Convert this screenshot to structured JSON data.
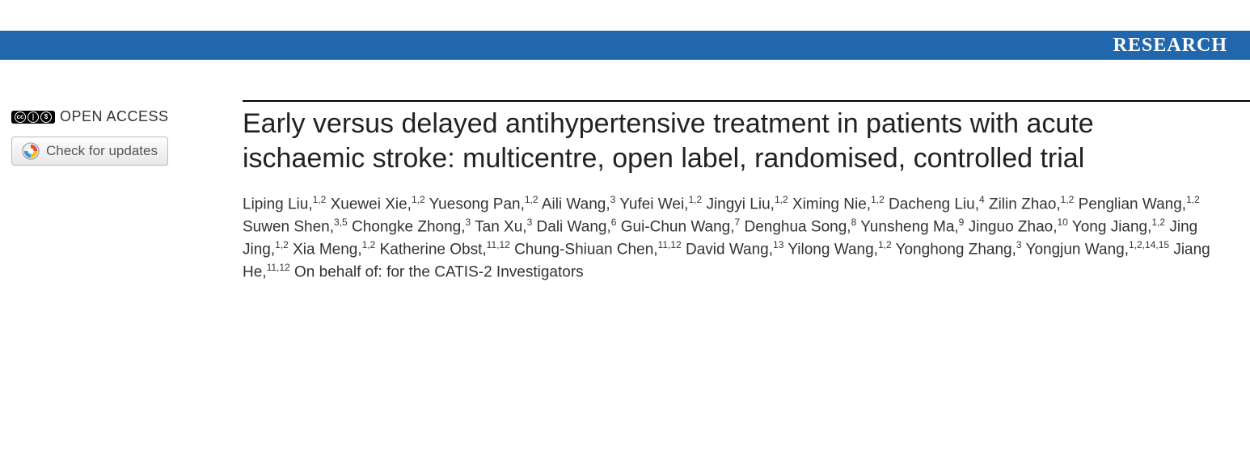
{
  "banner": {
    "label": "RESEARCH",
    "background_color": "#2167ae",
    "text_color": "#ffffff"
  },
  "sidebar": {
    "open_access_label": "OPEN ACCESS",
    "check_updates_label": "Check for updates"
  },
  "article": {
    "title": "Early versus delayed antihypertensive treatment in patients with acute ischaemic stroke: multicentre, open label, randomised, controlled trial",
    "authors": [
      {
        "name": "Liping Liu",
        "affil": "1,2"
      },
      {
        "name": "Xuewei Xie",
        "affil": "1,2"
      },
      {
        "name": "Yuesong Pan",
        "affil": "1,2"
      },
      {
        "name": "Aili Wang",
        "affil": "3"
      },
      {
        "name": "Yufei Wei",
        "affil": "1,2"
      },
      {
        "name": "Jingyi Liu",
        "affil": "1,2"
      },
      {
        "name": "Ximing Nie",
        "affil": "1,2"
      },
      {
        "name": "Dacheng Liu",
        "affil": "4"
      },
      {
        "name": "Zilin Zhao",
        "affil": "1,2"
      },
      {
        "name": "Penglian Wang",
        "affil": "1,2"
      },
      {
        "name": "Suwen Shen",
        "affil": "3,5"
      },
      {
        "name": "Chongke Zhong",
        "affil": "3"
      },
      {
        "name": "Tan Xu",
        "affil": "3"
      },
      {
        "name": "Dali Wang",
        "affil": "6"
      },
      {
        "name": "Gui-Chun Wang",
        "affil": "7"
      },
      {
        "name": "Denghua Song",
        "affil": "8"
      },
      {
        "name": "Yunsheng Ma",
        "affil": "9"
      },
      {
        "name": "Jinguo Zhao",
        "affil": "10"
      },
      {
        "name": "Yong Jiang",
        "affil": "1,2"
      },
      {
        "name": "Jing Jing",
        "affil": "1,2"
      },
      {
        "name": "Xia Meng",
        "affil": "1,2"
      },
      {
        "name": "Katherine Obst",
        "affil": "11,12"
      },
      {
        "name": "Chung-Shiuan Chen",
        "affil": "11,12"
      },
      {
        "name": "David Wang",
        "affil": "13"
      },
      {
        "name": "Yilong Wang",
        "affil": "1,2"
      },
      {
        "name": "Yonghong Zhang",
        "affil": "3"
      },
      {
        "name": "Yongjun Wang",
        "affil": "1,2,14,15"
      },
      {
        "name": "Jiang He",
        "affil": "11,12"
      }
    ],
    "on_behalf": "On behalf of: for the CATIS-2 Investigators"
  },
  "styling": {
    "title_fontsize": 34,
    "title_color": "#222222",
    "author_fontsize": 19,
    "author_color": "#333333",
    "rule_color": "#000000",
    "background_color": "#ffffff"
  }
}
